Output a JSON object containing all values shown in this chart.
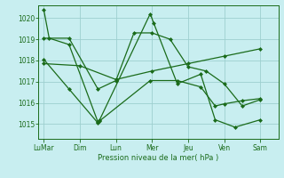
{
  "background_color": "#c8eef0",
  "grid_color": "#9ecfcf",
  "line_color": "#1a6b1a",
  "marker_color": "#1a6b1a",
  "xlabel": "Pression niveau de la mer( hPa )",
  "ylim": [
    1014.3,
    1020.6
  ],
  "yticks": [
    1015,
    1016,
    1017,
    1018,
    1019,
    1020
  ],
  "xtick_labels": [
    "LuMar",
    "Dim",
    "Lun",
    "Mer",
    "Jeu",
    "Ven",
    "Sam"
  ],
  "xtick_positions": [
    0,
    1,
    2,
    3,
    4,
    5,
    6
  ],
  "xlim": [
    -0.15,
    6.5
  ],
  "series": [
    {
      "x": [
        0.0,
        0.15,
        0.7,
        1.5,
        1.55,
        2.95,
        3.05,
        3.7,
        4.35,
        4.75,
        5.3,
        6.0
      ],
      "y": [
        1020.4,
        1019.05,
        1018.75,
        1015.1,
        1015.2,
        1020.2,
        1019.75,
        1016.9,
        1017.35,
        1015.2,
        1014.85,
        1015.2
      ]
    },
    {
      "x": [
        0.0,
        0.7,
        1.5,
        2.0,
        2.5,
        3.0,
        3.5,
        4.0,
        4.5,
        5.0,
        5.5,
        6.0
      ],
      "y": [
        1019.05,
        1019.05,
        1016.65,
        1017.05,
        1019.3,
        1019.3,
        1019.0,
        1017.7,
        1017.5,
        1016.9,
        1015.85,
        1016.15
      ]
    },
    {
      "x": [
        0.0,
        1.0,
        2.0,
        3.0,
        4.0,
        5.0,
        6.0
      ],
      "y": [
        1017.85,
        1017.75,
        1017.1,
        1017.5,
        1017.85,
        1018.2,
        1018.55
      ]
    },
    {
      "x": [
        0.0,
        0.7,
        1.5,
        1.55,
        2.95,
        3.7,
        4.35,
        4.75,
        5.0,
        5.5,
        6.0
      ],
      "y": [
        1018.05,
        1016.65,
        1015.05,
        1015.15,
        1017.05,
        1017.05,
        1016.75,
        1015.85,
        1015.95,
        1016.1,
        1016.2
      ]
    }
  ]
}
